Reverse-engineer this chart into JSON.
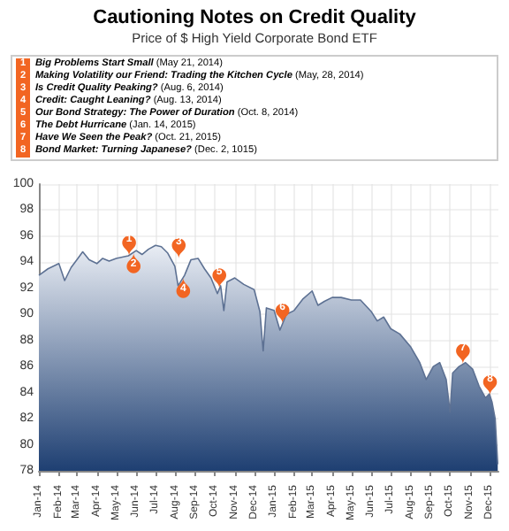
{
  "chart_data": {
    "type": "area",
    "title": "Cautioning Notes on Credit Quality",
    "subtitle": "Price of $ High Yield Corporate Bond ETF",
    "x": [
      "2014-01-01",
      "2014-01-15",
      "2014-02-01",
      "2014-02-10",
      "2014-02-20",
      "2014-03-01",
      "2014-03-10",
      "2014-03-20",
      "2014-04-01",
      "2014-04-10",
      "2014-04-20",
      "2014-05-01",
      "2014-05-20",
      "2014-06-01",
      "2014-06-10",
      "2014-06-20",
      "2014-07-01",
      "2014-07-10",
      "2014-07-20",
      "2014-07-31",
      "2014-08-05",
      "2014-08-15",
      "2014-08-25",
      "2014-09-05",
      "2014-09-15",
      "2014-09-25",
      "2014-10-05",
      "2014-10-10",
      "2014-10-15",
      "2014-10-20",
      "2014-11-01",
      "2014-11-15",
      "2014-12-01",
      "2014-12-10",
      "2014-12-15",
      "2014-12-20",
      "2015-01-01",
      "2015-01-10",
      "2015-01-20",
      "2015-02-01",
      "2015-02-15",
      "2015-03-01",
      "2015-03-10",
      "2015-03-20",
      "2015-04-01",
      "2015-04-15",
      "2015-05-01",
      "2015-05-15",
      "2015-06-01",
      "2015-06-10",
      "2015-06-20",
      "2015-07-01",
      "2015-07-15",
      "2015-08-01",
      "2015-08-15",
      "2015-08-25",
      "2015-09-05",
      "2015-09-15",
      "2015-09-25",
      "2015-10-01",
      "2015-10-05",
      "2015-10-15",
      "2015-10-25",
      "2015-11-05",
      "2015-11-15",
      "2015-11-25",
      "2015-12-01",
      "2015-12-05",
      "2015-12-10",
      "2015-12-14"
    ],
    "series": [
      {
        "color": "#1e3f72",
        "values": [
          93,
          93.5,
          93.9,
          92.6,
          93.6,
          94.2,
          94.8,
          94.2,
          93.9,
          94.3,
          94.1,
          94.3,
          94.5,
          94.9,
          94.6,
          95,
          95.3,
          95.2,
          94.7,
          93.7,
          92.2,
          93,
          94.2,
          94.3,
          93.5,
          92.8,
          91.6,
          92.2,
          90.3,
          92.5,
          92.8,
          92.3,
          91.9,
          90.2,
          87.2,
          90.5,
          90.3,
          88.8,
          90,
          90.3,
          91.2,
          91.8,
          90.7,
          91,
          91.3,
          91.3,
          91.1,
          91.1,
          90.2,
          89.5,
          89.8,
          88.9,
          88.5,
          87.5,
          86.3,
          85,
          86,
          86.3,
          85,
          82.5,
          85.5,
          86,
          86.3,
          85.8,
          84.5,
          83.6,
          83.9,
          83.3,
          82,
          78.5
        ]
      }
    ],
    "xlim": [
      "2014-01-01",
      "2015-12-15"
    ],
    "xticks": [
      {
        "value": "2014-01-01",
        "label": "Jan-14"
      },
      {
        "value": "2014-02-01",
        "label": "Feb-14"
      },
      {
        "value": "2014-03-01",
        "label": "Mar-14"
      },
      {
        "value": "2014-04-01",
        "label": "Apr-14"
      },
      {
        "value": "2014-05-01",
        "label": "May-14"
      },
      {
        "value": "2014-06-01",
        "label": "Jun-14"
      },
      {
        "value": "2014-07-01",
        "label": "Jul-14"
      },
      {
        "value": "2014-08-01",
        "label": "Aug-14"
      },
      {
        "value": "2014-09-01",
        "label": "Sep-14"
      },
      {
        "value": "2014-10-01",
        "label": "Oct-14"
      },
      {
        "value": "2014-11-01",
        "label": "Nov-14"
      },
      {
        "value": "2014-12-01",
        "label": "Dec-14"
      },
      {
        "value": "2015-01-01",
        "label": "Jan-15"
      },
      {
        "value": "2015-02-01",
        "label": "Feb-15"
      },
      {
        "value": "2015-03-01",
        "label": "Mar-15"
      },
      {
        "value": "2015-04-01",
        "label": "Apr-15"
      },
      {
        "value": "2015-05-01",
        "label": "May-15"
      },
      {
        "value": "2015-06-01",
        "label": "Jun-15"
      },
      {
        "value": "2015-07-01",
        "label": "Jul-15"
      },
      {
        "value": "2015-08-01",
        "label": "Aug-15"
      },
      {
        "value": "2015-09-01",
        "label": "Sep-15"
      },
      {
        "value": "2015-10-01",
        "label": "Oct-15"
      },
      {
        "value": "2015-11-01",
        "label": "Nov-15"
      },
      {
        "value": "2015-12-01",
        "label": "Dec-15"
      }
    ],
    "ylim": [
      78,
      100
    ],
    "yticks": [
      78,
      80,
      82,
      84,
      86,
      88,
      90,
      92,
      94,
      96,
      98,
      100
    ],
    "grid": true,
    "annotations": [
      "Big Problems Start Small (May 21, 2014)",
      "Making Volatility our Friend: Trading the Kitchen Cycle (May, 28, 2014)",
      "Is Credit Quality Peaking? (Aug. 6, 2014)",
      "Credit: Caught Leaning? (Aug. 13, 2014)",
      "Our Bond Strategy: The Power of Duration (Oct. 8, 2014)",
      "The Debt Hurricane (Jan. 14, 2015)",
      "Have We Seen the Peak? (Oct. 21, 2015)",
      "Bond Market: Turning Japanese? (Dec. 2, 1015)",
      {
        "text": "1",
        "x": "2014-05-21",
        "y": 94.5
      },
      {
        "text": "2",
        "x": "2014-05-28",
        "y": 94.7
      },
      {
        "text": "3",
        "x": "2014-08-06",
        "y": 94.3
      },
      {
        "text": "4",
        "x": "2014-08-13",
        "y": 92.8
      },
      {
        "text": "5",
        "x": "2014-10-08",
        "y": 92
      },
      {
        "text": "6",
        "x": "2015-01-14",
        "y": 89.3
      },
      {
        "text": "7",
        "x": "2015-10-21",
        "y": 86.2
      },
      {
        "text": "8",
        "x": "2015-12-02",
        "y": 83.8
      }
    ]
  }
}
